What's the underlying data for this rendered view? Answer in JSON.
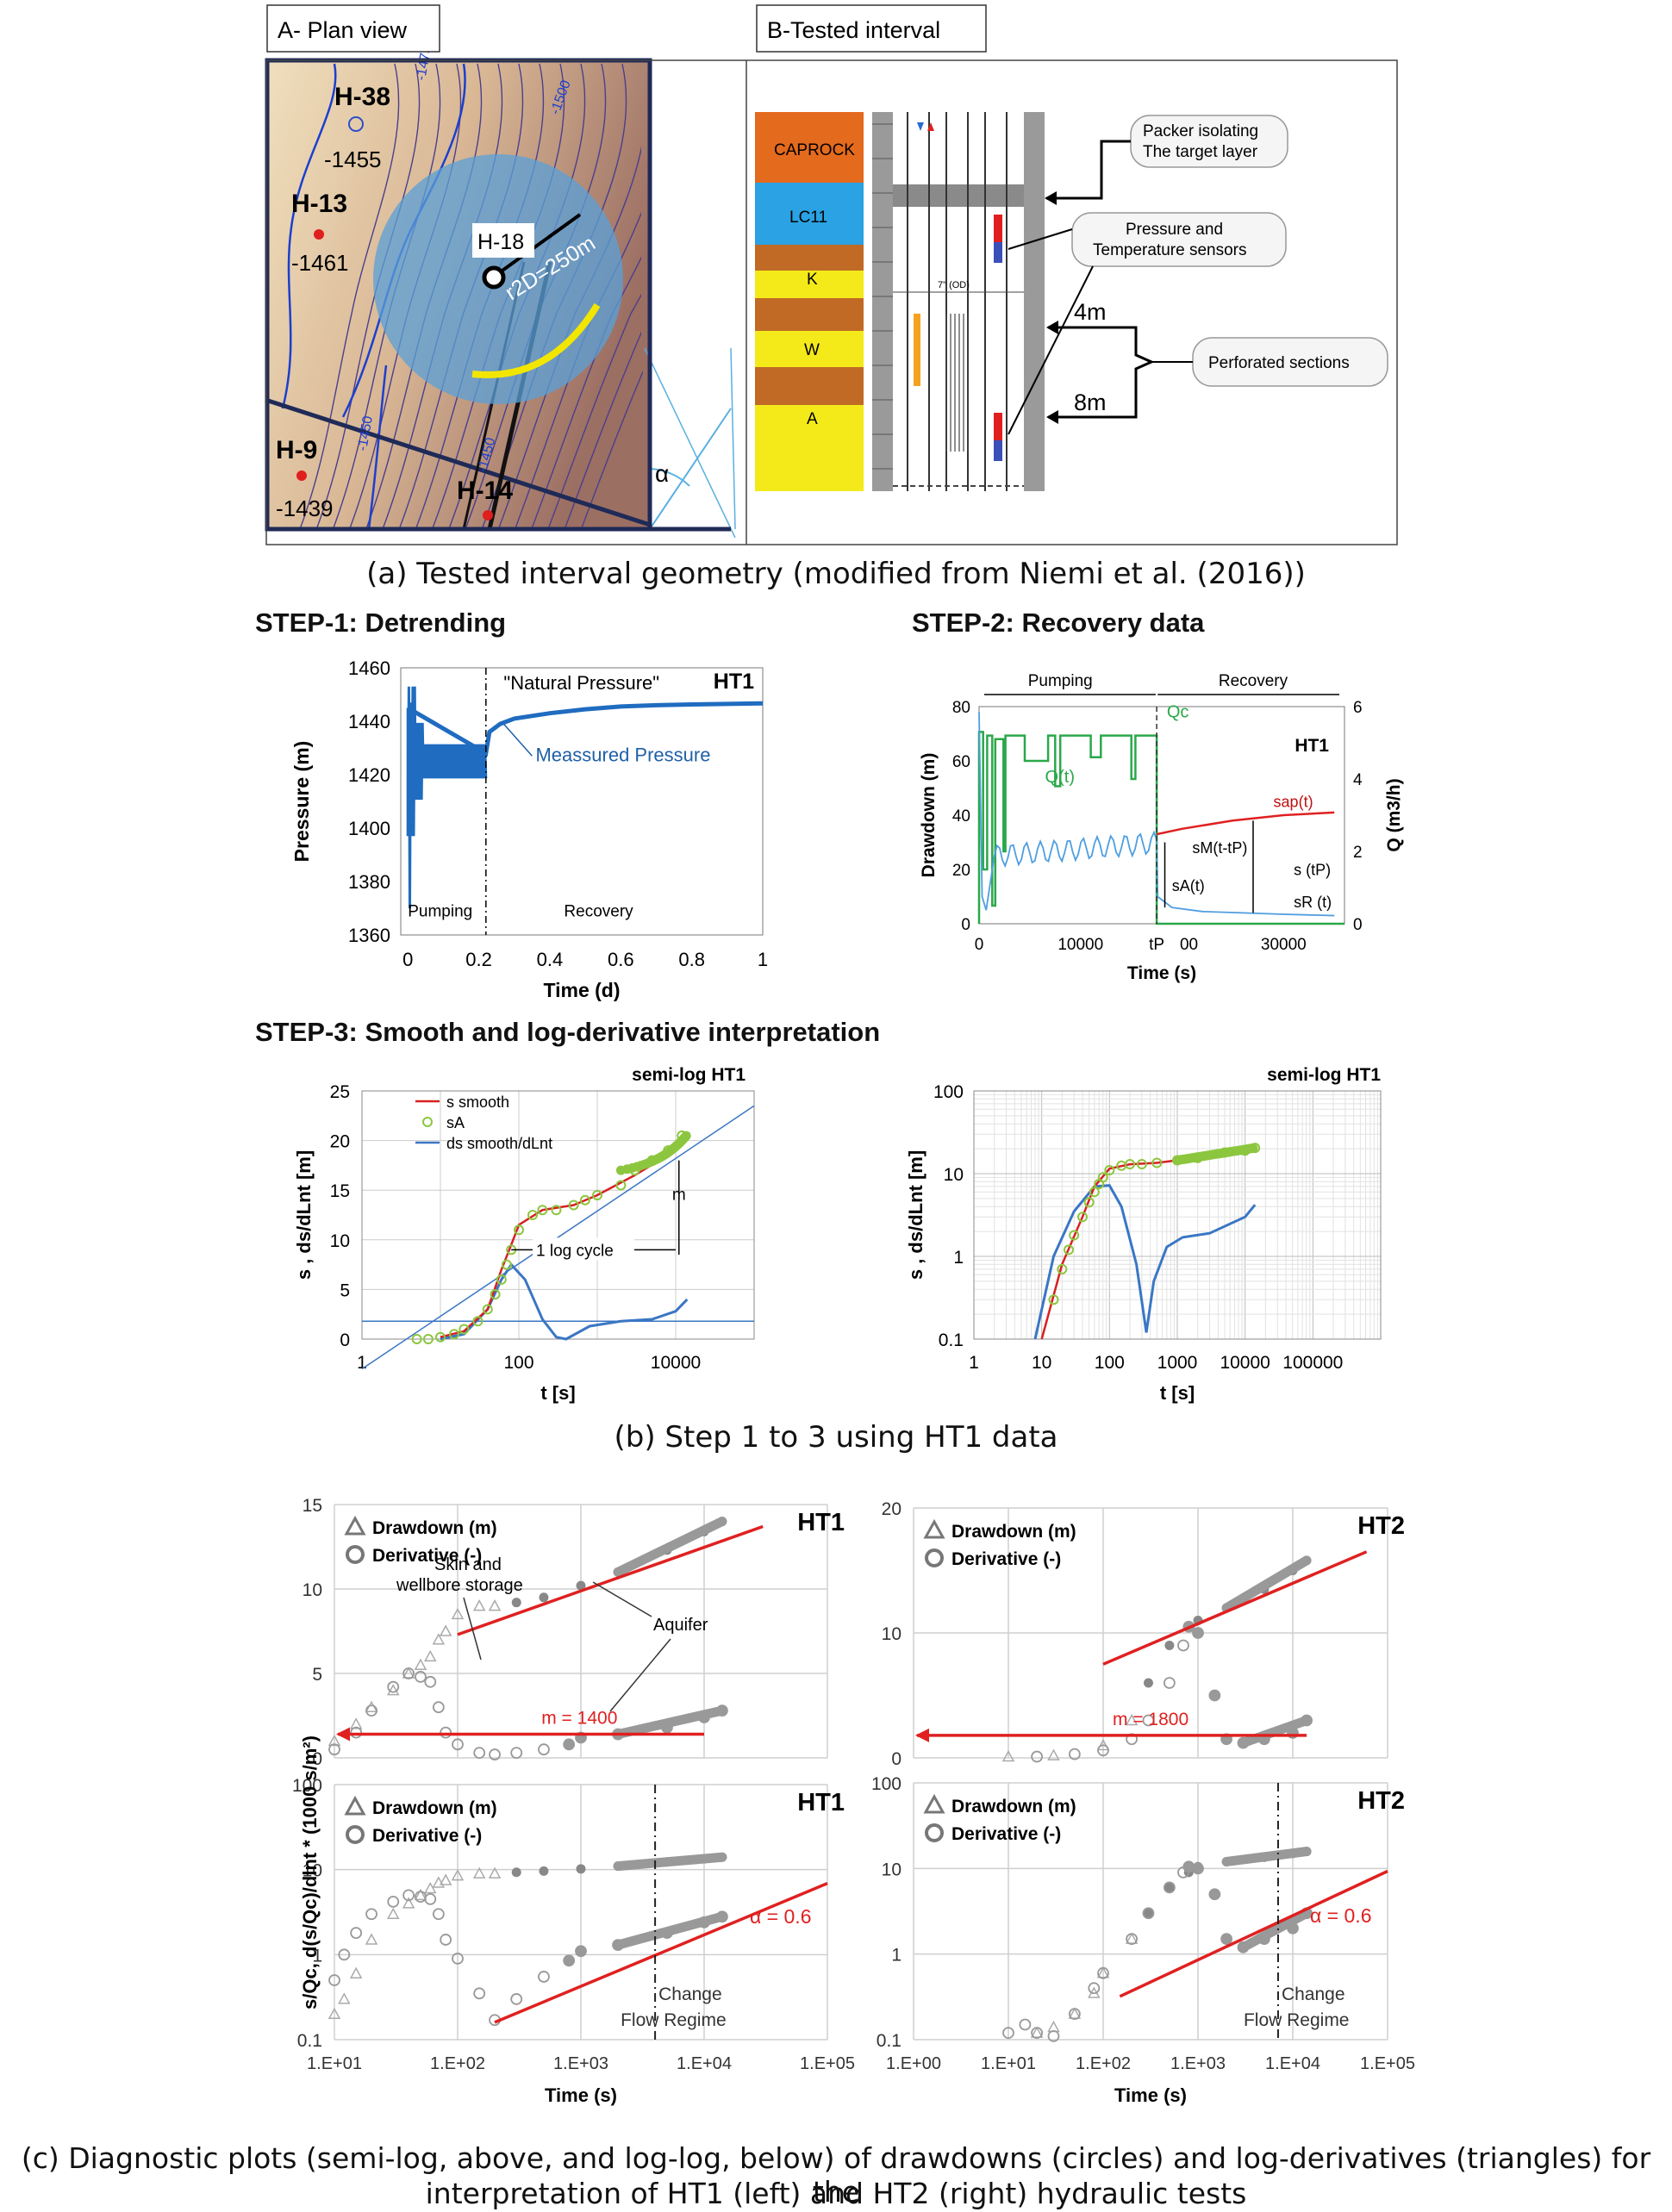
{
  "panel_a": {
    "title_a": "A- Plan view",
    "title_b": "B-Tested interval",
    "wells": [
      {
        "name": "H-38",
        "elev": "-1455"
      },
      {
        "name": "H-13",
        "elev": "-1461"
      },
      {
        "name": "H-9",
        "elev": "-1439"
      },
      {
        "name": "H-14",
        "elev": ""
      }
    ],
    "h18_label": "H-18",
    "radius_label": "r2D=250m",
    "contours": [
      "-1475",
      "-1500",
      "-1450",
      "-1450"
    ],
    "alpha": "α",
    "layers": [
      "CAPROCK",
      "LC11",
      "K",
      "W",
      "A"
    ],
    "od_label": "7\" (OD)",
    "callouts": {
      "packer_1": "Packer isolating",
      "packer_2": "The target layer",
      "sensors_1": "Pressure and",
      "sensors_2": "Temperature sensors",
      "perforated": "Perforated sections",
      "four_m": "4m",
      "eight_m": "8m"
    }
  },
  "captions": {
    "a": "(a) Tested interval geometry (modified from Niemi et al. (2016))",
    "b": "(b) Step 1 to 3 using HT1 data",
    "c_1": "(c) Diagnostic plots (semi-log, above, and log-log, below) of drawdowns (circles) and log-derivatives (triangles) for the",
    "c_2": "interpretation of HT1 (left) and HT2 (right) hydraulic tests"
  },
  "step_titles": {
    "step1": "STEP-1: Detrending",
    "step2": "STEP-2: Recovery data",
    "step3": "STEP-3: Smooth and log-derivative interpretation"
  },
  "chart_data": [
    {
      "id": "step1",
      "type": "line",
      "title": "HT1",
      "xlabel": "Time (d)",
      "ylabel": "Pressure (m)",
      "xlim": [
        -0.02,
        1.0
      ],
      "ylim": [
        1360,
        1460
      ],
      "xticks": [
        "0",
        "0.2",
        "0.4",
        "0.6",
        "0.8",
        "1"
      ],
      "yticks": [
        "1360",
        "1380",
        "1400",
        "1420",
        "1440",
        "1460"
      ],
      "annotations": {
        "natural": "\"Natural Pressure\"",
        "measured": "Meassured Pressure",
        "pumping": "Pumping",
        "recovery": "Recovery"
      },
      "tp": 0.22,
      "series": [
        {
          "x": [
            0.0,
            0.22,
            0.23,
            0.26,
            0.3,
            0.35,
            0.4,
            0.5,
            0.6,
            0.7,
            0.8,
            0.9,
            1.0
          ],
          "values": [
            1445,
            1428,
            1436,
            1439,
            1441,
            1442,
            1443,
            1444.5,
            1445.5,
            1446,
            1446.3,
            1446.5,
            1446.7
          ]
        }
      ]
    },
    {
      "id": "step2",
      "type": "line",
      "title": "HT1",
      "xlabel": "Time (s)",
      "ylabel": "Drawdown (m)",
      "y2label": "Q (m3/h)",
      "xlim": [
        0,
        36000
      ],
      "ylim": [
        0,
        80
      ],
      "y2lim": [
        0,
        6
      ],
      "xticks": [
        "0",
        "10000",
        "tP",
        "00",
        "30000"
      ],
      "yticks": [
        "0",
        "20",
        "40",
        "60",
        "80"
      ],
      "y2ticks": [
        "0",
        "2",
        "4",
        "6"
      ],
      "annotations": {
        "pumping": "Pumping",
        "recovery": "Recovery",
        "qc": "Qc",
        "qt": "Q(t)",
        "sap": "sap(t)",
        "sm": "sM(t-tP)",
        "stp": "s (tP)",
        "sa": "sA(t)",
        "sr": "sR (t)"
      },
      "tp": 17500,
      "series": [
        {
          "name": "drawdown",
          "x": [
            0,
            700,
            1500,
            3000,
            4500,
            6000,
            8000,
            10000,
            12000,
            14000,
            16000,
            17500,
            18000,
            20000,
            25000,
            30000,
            35000
          ],
          "values": [
            78,
            5,
            28,
            22,
            28,
            20,
            24,
            20,
            30,
            21,
            33,
            30,
            10,
            6,
            4,
            3.5,
            3
          ]
        },
        {
          "name": "sap",
          "x": [
            17500,
            20000,
            25000,
            30000,
            35000
          ],
          "values": [
            33,
            35,
            38,
            40,
            41
          ]
        },
        {
          "name": "Q",
          "x": [
            0,
            1000,
            2000,
            5000,
            8000,
            12000,
            15000,
            17500,
            17600,
            36000
          ],
          "values": [
            5.3,
            5.2,
            5.1,
            5.2,
            4.9,
            5.2,
            5.2,
            5.2,
            0,
            0
          ]
        }
      ]
    },
    {
      "id": "step3a",
      "type": "line",
      "title": "semi-log HT1",
      "xlabel": "t [s]",
      "ylabel": "s , ds/dLnt [m]",
      "xscale": "log",
      "xlim": [
        1,
        100000
      ],
      "ylim": [
        0,
        25
      ],
      "xticks": [
        "1",
        "100",
        "10000"
      ],
      "yticks": [
        "0",
        "5",
        "10",
        "15",
        "20",
        "25"
      ],
      "legend": [
        "s smooth",
        "sA",
        "ds smooth/dLnt"
      ],
      "annotations": {
        "m": "m",
        "cycle": "1 log cycle"
      },
      "series": [
        {
          "name": "s smooth",
          "x": [
            10,
            20,
            40,
            60,
            80,
            100,
            200,
            500,
            1000,
            3000,
            10000,
            14000
          ],
          "values": [
            0.2,
            0.8,
            3,
            7,
            9.5,
            11.5,
            13,
            13.5,
            14.5,
            16.5,
            19,
            20.5
          ]
        },
        {
          "name": "sA",
          "x": [
            5,
            7,
            10,
            15,
            20,
            30,
            40,
            50,
            60,
            70,
            80,
            100,
            150,
            200,
            300,
            500,
            700,
            1000,
            2000,
            3000,
            5000,
            8000,
            12000
          ],
          "values": [
            0,
            0,
            0.2,
            0.5,
            1,
            1.8,
            3,
            4.5,
            6,
            7.5,
            9,
            11,
            12.5,
            13,
            13,
            13.5,
            14,
            14.5,
            15.5,
            17,
            18,
            19,
            20.5
          ]
        },
        {
          "name": "ds smooth/dLnt",
          "x": [
            10,
            20,
            40,
            60,
            80,
            120,
            200,
            300,
            400,
            800,
            2000,
            5000,
            10000,
            14000
          ],
          "values": [
            0,
            0.5,
            3,
            6,
            7.5,
            6,
            2,
            0.2,
            0,
            1.3,
            1.8,
            2,
            2.8,
            4
          ]
        },
        {
          "name": "fit",
          "x": [
            1,
            100000
          ],
          "values": [
            -3,
            23.5
          ]
        },
        {
          "name": "base",
          "x": [
            1,
            100000
          ],
          "values": [
            1.8,
            1.8
          ]
        }
      ]
    },
    {
      "id": "step3b",
      "type": "line",
      "title": "semi-log HT1",
      "xlabel": "t [s]",
      "ylabel": "s , ds/dLnt [m]",
      "xscale": "log",
      "yscale": "log",
      "xlim": [
        1,
        1000000
      ],
      "ylim": [
        0.1,
        100
      ],
      "xticks": [
        "1",
        "10",
        "100",
        "1000",
        "10000",
        "100000"
      ],
      "yticks": [
        "0.1",
        "1",
        "10",
        "100"
      ],
      "series": [
        {
          "name": "s smooth",
          "x": [
            10,
            20,
            40,
            60,
            100,
            200,
            500,
            1000,
            3000,
            10000,
            14000
          ],
          "values": [
            0.1,
            0.8,
            3,
            7,
            11.5,
            13,
            13.5,
            14.5,
            16.5,
            19,
            20.5
          ]
        },
        {
          "name": "sA",
          "x": [
            15,
            20,
            25,
            30,
            40,
            50,
            60,
            70,
            80,
            100,
            150,
            200,
            300,
            500,
            1000,
            2000,
            5000,
            10000,
            14000
          ],
          "values": [
            0.3,
            0.7,
            1.2,
            1.8,
            3,
            4.5,
            6,
            7.5,
            9,
            11,
            12.5,
            13,
            13,
            13.5,
            14.5,
            15.5,
            18,
            19,
            20.5
          ]
        },
        {
          "name": "ds smooth/dLnt",
          "x": [
            8,
            15,
            30,
            60,
            100,
            150,
            250,
            350,
            450,
            700,
            1200,
            3000,
            10000,
            14000
          ],
          "values": [
            0.1,
            1,
            3.5,
            7,
            7.2,
            4,
            0.8,
            0.12,
            0.5,
            1.3,
            1.7,
            1.9,
            3,
            4.2
          ]
        }
      ]
    },
    {
      "id": "c_semi_ht1",
      "type": "scatter",
      "title": "HT1",
      "xscale": "log",
      "xlim": [
        10,
        100000
      ],
      "ylim": [
        0,
        15
      ],
      "yticks": [
        "0",
        "5",
        "10",
        "15"
      ],
      "legend": [
        "Drawdown (m)",
        "Derivative (-)"
      ],
      "annotations": {
        "skin_1": "Skin and",
        "skin_2": "wellbore storage",
        "aquifer": "Aquifer",
        "m": "m = 1400"
      },
      "series": [
        {
          "name": "Drawdown (m)",
          "x": [
            10,
            15,
            20,
            30,
            40,
            50,
            60,
            70,
            80,
            100,
            150,
            200,
            300,
            500,
            1000,
            2000,
            5000,
            10000,
            14000
          ],
          "values": [
            1,
            2,
            3,
            4,
            5,
            5.5,
            6,
            7,
            7.5,
            8.5,
            9,
            9,
            9.2,
            9.5,
            10.2,
            11,
            12.3,
            13.4,
            14
          ]
        },
        {
          "name": "Derivative (-)",
          "x": [
            10,
            15,
            20,
            30,
            40,
            50,
            60,
            70,
            80,
            100,
            150,
            200,
            300,
            500,
            800,
            1000,
            2000,
            5000,
            10000,
            14000
          ],
          "values": [
            0.5,
            1.5,
            2.8,
            4.2,
            5,
            4.8,
            4.5,
            3,
            1.5,
            0.8,
            0.3,
            0.2,
            0.3,
            0.5,
            0.8,
            1.2,
            1.4,
            1.8,
            2.4,
            2.8
          ]
        },
        {
          "name": "fit",
          "x": [
            100,
            30000
          ],
          "values": [
            7.3,
            13.7
          ]
        },
        {
          "name": "flat",
          "x": [
            10,
            10000
          ],
          "values": [
            1.4,
            1.4
          ]
        }
      ]
    },
    {
      "id": "c_semi_ht2",
      "type": "scatter",
      "title": "HT2",
      "xscale": "log",
      "xlim": [
        1,
        100000
      ],
      "ylim": [
        0,
        20
      ],
      "yticks": [
        "0",
        "10",
        "20"
      ],
      "legend": [
        "Drawdown (m)",
        "Derivative (-)"
      ],
      "annotations": {
        "m": "m = 1800"
      },
      "series": [
        {
          "name": "Drawdown (m)",
          "x": [
            10,
            30,
            100,
            200,
            300,
            500,
            800,
            1000,
            2000,
            5000,
            10000,
            14000
          ],
          "values": [
            0.1,
            0.2,
            1,
            3,
            6,
            9,
            10.5,
            11,
            12,
            13.5,
            15,
            15.8
          ]
        },
        {
          "name": "Derivative (-)",
          "x": [
            20,
            50,
            100,
            200,
            300,
            500,
            700,
            800,
            1000,
            1500,
            2000,
            3000,
            5000,
            10000,
            14000
          ],
          "values": [
            0.1,
            0.3,
            0.6,
            1.5,
            3,
            6,
            9,
            10.5,
            10,
            5,
            1.5,
            1.2,
            1.5,
            2,
            3
          ]
        },
        {
          "name": "fit",
          "x": [
            100,
            60000
          ],
          "values": [
            7.5,
            16.5
          ]
        },
        {
          "name": "flat",
          "x": [
            1,
            14000
          ],
          "values": [
            1.8,
            1.8
          ]
        }
      ]
    },
    {
      "id": "c_log_ht1",
      "type": "scatter",
      "title": "HT1",
      "xscale": "log",
      "yscale": "log",
      "xlabel": "Time (s)",
      "xlim": [
        10,
        100000
      ],
      "ylim": [
        0.1,
        100
      ],
      "xticks": [
        "1.E+01",
        "1.E+02",
        "1.E+03",
        "1.E+04",
        "1.E+05"
      ],
      "yticks": [
        "0.1",
        "1",
        "10",
        "100"
      ],
      "legend": [
        "Drawdown (m)",
        "Derivative (-)"
      ],
      "annotations": {
        "alpha": "α = 0.6",
        "change_1": "Change",
        "change_2": "Flow Regime"
      },
      "regime_x": 4000,
      "series": [
        {
          "name": "Drawdown (m)",
          "x": [
            10,
            12,
            15,
            20,
            30,
            40,
            50,
            60,
            70,
            80,
            100,
            150,
            200,
            300,
            500,
            1000,
            2000,
            5000,
            10000,
            14000
          ],
          "values": [
            0.2,
            0.3,
            0.6,
            1.5,
            3,
            4,
            5,
            6,
            7,
            7.5,
            8.5,
            9,
            9,
            9.3,
            9.6,
            10.2,
            11,
            12.3,
            13.4,
            14
          ]
        },
        {
          "name": "Derivative (-)",
          "x": [
            10,
            12,
            15,
            20,
            30,
            40,
            50,
            60,
            70,
            80,
            100,
            150,
            200,
            300,
            500,
            800,
            1000,
            2000,
            5000,
            10000,
            14000
          ],
          "values": [
            0.5,
            1,
            1.8,
            3,
            4.2,
            5,
            4.8,
            4.5,
            3,
            1.5,
            0.9,
            0.35,
            0.17,
            0.3,
            0.55,
            0.85,
            1.1,
            1.3,
            1.8,
            2.4,
            2.8
          ]
        },
        {
          "name": "fit",
          "x": [
            200,
            100000
          ],
          "values": [
            0.16,
            6.9
          ]
        }
      ]
    },
    {
      "id": "c_log_ht2",
      "type": "scatter",
      "title": "HT2",
      "xscale": "log",
      "yscale": "log",
      "xlabel": "Time (s)",
      "xlim": [
        1,
        100000
      ],
      "ylim": [
        0.1,
        100
      ],
      "xticks": [
        "1.E+00",
        "1.E+01",
        "1.E+02",
        "1.E+03",
        "1.E+04",
        "1.E+05"
      ],
      "yticks": [
        "0.1",
        "1",
        "10",
        "100"
      ],
      "legend": [
        "Drawdown (m)",
        "Derivative (-)"
      ],
      "annotations": {
        "alpha": "α = 0.6",
        "change_1": "Change",
        "change_2": "Flow Regime"
      },
      "regime_x": 7000,
      "series": [
        {
          "name": "Drawdown (m)",
          "x": [
            20,
            30,
            50,
            80,
            100,
            200,
            300,
            500,
            800,
            1000,
            2000,
            5000,
            10000,
            14000
          ],
          "values": [
            0.12,
            0.14,
            0.2,
            0.35,
            0.6,
            1.5,
            3,
            6,
            9,
            10.5,
            12,
            13.5,
            15,
            15.8
          ]
        },
        {
          "name": "Derivative (-)",
          "x": [
            10,
            15,
            20,
            30,
            50,
            80,
            100,
            200,
            300,
            500,
            700,
            800,
            1000,
            1500,
            2000,
            3000,
            5000,
            10000,
            14000
          ],
          "values": [
            0.12,
            0.15,
            0.12,
            0.11,
            0.2,
            0.4,
            0.6,
            1.5,
            3,
            6,
            9,
            10.5,
            10,
            5,
            1.5,
            1.2,
            1.5,
            2,
            3
          ]
        },
        {
          "name": "fit",
          "x": [
            150,
            100000
          ],
          "values": [
            0.32,
            9.3
          ]
        }
      ]
    }
  ],
  "common_ylabel_c": "s/Qc, d(s/Qc)/dlnt * (1000 s/m²)"
}
